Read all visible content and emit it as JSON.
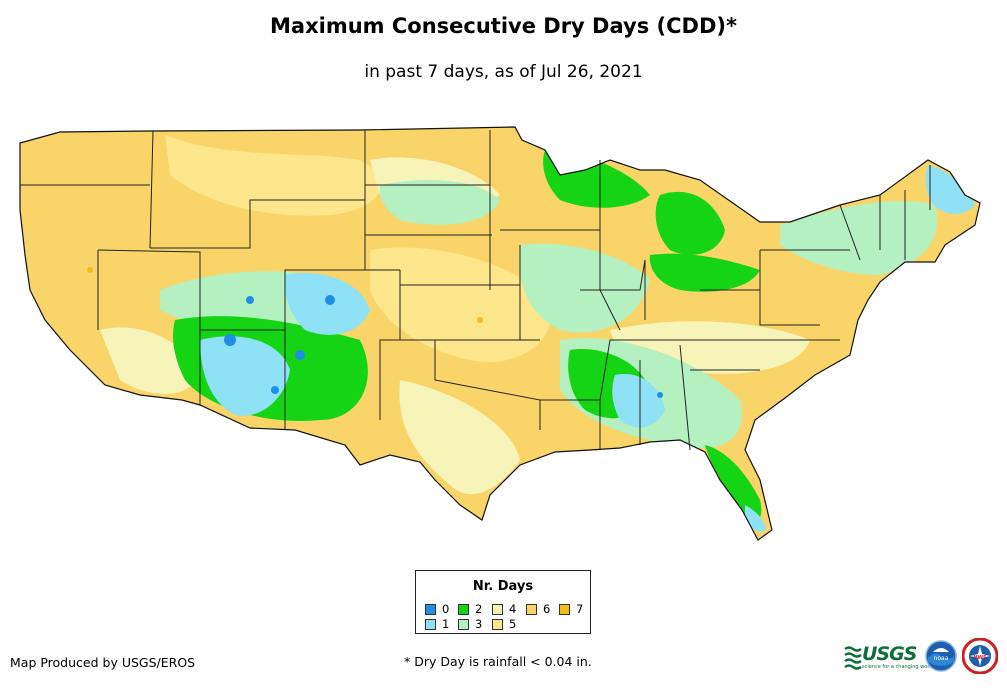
{
  "title": "Maximum Consecutive Dry Days (CDD)*",
  "subtitle": "in past 7 days, as of Jul 26, 2021",
  "legend": {
    "title": "Nr. Days",
    "items": [
      {
        "label": "0",
        "color": "#1f8fe6"
      },
      {
        "label": "1",
        "color": "#8fe1f5"
      },
      {
        "label": "2",
        "color": "#14d414"
      },
      {
        "label": "3",
        "color": "#b4f0c0"
      },
      {
        "label": "4",
        "color": "#f6f4b8"
      },
      {
        "label": "5",
        "color": "#fde68c"
      },
      {
        "label": "6",
        "color": "#f9d469"
      },
      {
        "label": "7",
        "color": "#f7bb14"
      }
    ]
  },
  "map": {
    "region": "Contiguous United States",
    "dominant_category": "6",
    "wet_regions": [
      {
        "name": "Southwest monsoon (AZ, NM, CO, UT)",
        "categories": [
          "0",
          "1",
          "2"
        ]
      },
      {
        "name": "Upper Great Lakes (MI, WI, MN)",
        "categories": [
          "2",
          "3"
        ]
      },
      {
        "name": "Southeast (FL, AL, GA, MS)",
        "categories": [
          "1",
          "2",
          "3"
        ]
      },
      {
        "name": "New England / Northeast",
        "categories": [
          "1",
          "3"
        ]
      }
    ]
  },
  "footer": {
    "credit": "Map Produced by USGS/EROS",
    "footnote": "* Dry Day is rainfall < 0.04 in.",
    "usgs_logo": "USGS",
    "usgs_tagline": "science for a changing world",
    "noaa_logo": "noaa",
    "nws_logo": "NWS"
  }
}
